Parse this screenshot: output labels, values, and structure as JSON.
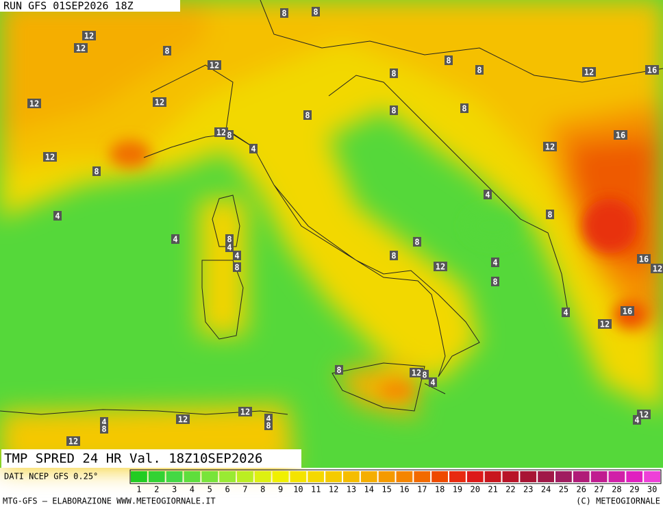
{
  "header": {
    "run": "RUN GFS 01SEP2026 18Z"
  },
  "footer": {
    "title": "TMP SPRED 24 HR Val. 18Z10SEP2026",
    "source": "DATI NCEP GFS 0.25°",
    "credit_left": "MTG-GFS — ELABORAZIONE WWW.METEOGIORNALE.IT",
    "credit_right": "(C) METEOGIORNALE"
  },
  "contour_labels": [
    12,
    12,
    8,
    8,
    8,
    12,
    12,
    12,
    8,
    8,
    8,
    12,
    16,
    8,
    8,
    8,
    12,
    8,
    4,
    12,
    16,
    12,
    8,
    4,
    4,
    4,
    8,
    8,
    4,
    4,
    8,
    8,
    8,
    12,
    4,
    8,
    16,
    12,
    4,
    16,
    12,
    8,
    12,
    8,
    4,
    12,
    12,
    4,
    8,
    4,
    8,
    12,
    4,
    12
  ],
  "colorbar": {
    "ticks": [
      1,
      2,
      3,
      4,
      5,
      6,
      7,
      8,
      9,
      10,
      11,
      12,
      13,
      14,
      15,
      16,
      17,
      18,
      19,
      20,
      21,
      22,
      23,
      24,
      25,
      26,
      27,
      28,
      29,
      30
    ],
    "colors": [
      "#22cc22",
      "#33d233",
      "#44d844",
      "#5ede3c",
      "#78e43a",
      "#99ea33",
      "#bbee22",
      "#ddf011",
      "#f0f000",
      "#f4e400",
      "#f5d800",
      "#f5cb00",
      "#f5bd00",
      "#f5ae00",
      "#f59a00",
      "#f58500",
      "#f26a00",
      "#ee4a00",
      "#e82a10",
      "#dc1a1a",
      "#c8161e",
      "#b81428",
      "#a81434",
      "#a01848",
      "#a01c60",
      "#b01c78",
      "#c01c90",
      "#d020a8",
      "#e020c0",
      "#ee40d8"
    ]
  }
}
